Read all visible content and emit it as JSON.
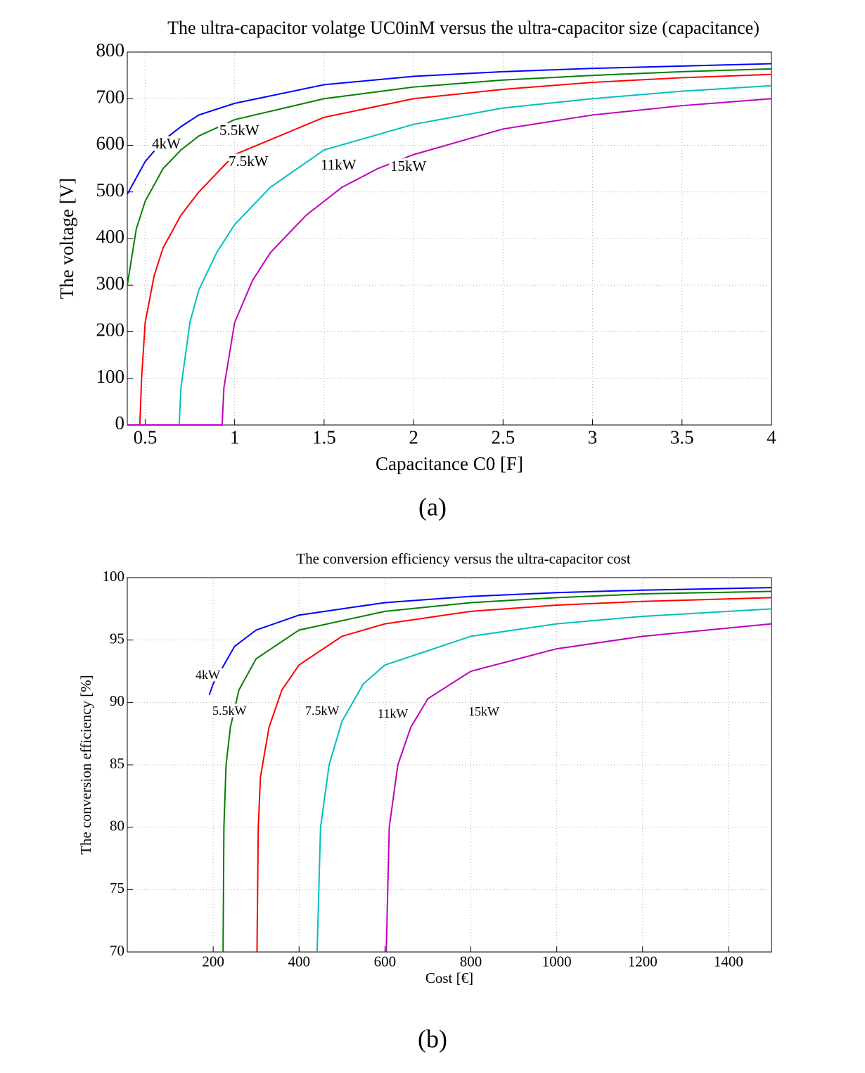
{
  "chart_data": [
    {
      "type": "line",
      "title": "The ultra-capacitor volatge UC0inM versus the ultra-capacitor size (capacitance)",
      "xlabel": "Capacitance C0 [F]",
      "ylabel": "The voltage [V]",
      "caption": "(a)",
      "xlim": [
        0.4,
        4
      ],
      "xticks": [
        0.5,
        1,
        1.5,
        2,
        2.5,
        3,
        3.5,
        4
      ],
      "ylim": [
        0,
        800
      ],
      "yticks": [
        0,
        100,
        200,
        300,
        400,
        500,
        600,
        700,
        800
      ],
      "grid": true,
      "series": [
        {
          "name": "4kW",
          "color": "#0000ff",
          "x": [
            0.4,
            0.5,
            0.6,
            0.7,
            0.8,
            1,
            1.5,
            2,
            2.5,
            3,
            3.5,
            4
          ],
          "values": [
            495,
            565,
            610,
            640,
            665,
            690,
            730,
            748,
            758,
            765,
            770,
            775
          ]
        },
        {
          "name": "5.5kW",
          "color": "#008000",
          "x": [
            0.4,
            0.45,
            0.5,
            0.6,
            0.7,
            0.8,
            1,
            1.5,
            2,
            2.5,
            3,
            3.5,
            4
          ],
          "values": [
            300,
            420,
            480,
            550,
            590,
            620,
            655,
            700,
            725,
            740,
            750,
            758,
            764
          ]
        },
        {
          "name": "7.5kW",
          "color": "#ff0000",
          "x": [
            0.4,
            0.47,
            0.48,
            0.5,
            0.55,
            0.6,
            0.7,
            0.8,
            0.9,
            1,
            1.5,
            2,
            2.5,
            3,
            3.5,
            4
          ],
          "values": [
            0,
            0,
            100,
            220,
            320,
            380,
            450,
            500,
            540,
            580,
            660,
            700,
            720,
            735,
            745,
            752
          ]
        },
        {
          "name": "11kW",
          "color": "#00bfbf",
          "x": [
            0.4,
            0.69,
            0.7,
            0.75,
            0.8,
            0.9,
            1,
            1.2,
            1.5,
            2,
            2.5,
            3,
            3.5,
            4
          ],
          "values": [
            0,
            0,
            80,
            220,
            290,
            370,
            430,
            510,
            590,
            645,
            680,
            700,
            716,
            728
          ]
        },
        {
          "name": "15kW",
          "color": "#bf00bf",
          "x": [
            0.4,
            0.93,
            0.94,
            1,
            1.1,
            1.2,
            1.4,
            1.6,
            1.8,
            2,
            2.5,
            3,
            3.5,
            4
          ],
          "values": [
            0,
            0,
            80,
            220,
            310,
            370,
            450,
            510,
            550,
            580,
            635,
            665,
            685,
            700
          ]
        }
      ]
    },
    {
      "type": "line",
      "title": "The conversion efficiency versus the ultra-capacitor cost",
      "xlabel": "Cost [€]",
      "ylabel": "The conversion efficiency [%]",
      "caption": "(b)",
      "xlim": [
        0,
        1500
      ],
      "xticks": [
        200,
        400,
        600,
        800,
        1000,
        1200,
        1400
      ],
      "ylim": [
        70,
        100
      ],
      "yticks": [
        70,
        75,
        80,
        85,
        90,
        95,
        100
      ],
      "grid": true,
      "series": [
        {
          "name": "4kW",
          "color": "#0000ff",
          "x": [
            191,
            200,
            250,
            300,
            400,
            600,
            800,
            1000,
            1200,
            1500
          ],
          "values": [
            90.6,
            91.5,
            94.5,
            95.8,
            97,
            98,
            98.5,
            98.8,
            99,
            99.2
          ]
        },
        {
          "name": "5.5kW",
          "color": "#008000",
          "x": [
            223,
            225,
            230,
            240,
            260,
            300,
            400,
            600,
            800,
            1000,
            1200,
            1500
          ],
          "values": [
            70,
            80,
            85,
            88,
            91,
            93.5,
            95.8,
            97.3,
            98,
            98.4,
            98.7,
            98.9
          ]
        },
        {
          "name": "7.5kW",
          "color": "#ff0000",
          "x": [
            302,
            305,
            310,
            330,
            360,
            400,
            500,
            600,
            800,
            1000,
            1200,
            1500
          ],
          "values": [
            70,
            80,
            84,
            88,
            91,
            93,
            95.3,
            96.3,
            97.3,
            97.8,
            98.1,
            98.4
          ]
        },
        {
          "name": "11kW",
          "color": "#00bfbf",
          "x": [
            442,
            450,
            470,
            500,
            550,
            600,
            800,
            1000,
            1200,
            1500
          ],
          "values": [
            70,
            80,
            85,
            88.5,
            91.5,
            93,
            95.3,
            96.3,
            96.9,
            97.5
          ]
        },
        {
          "name": "15kW",
          "color": "#bf00bf",
          "x": [
            603,
            610,
            630,
            660,
            700,
            800,
            1000,
            1200,
            1500
          ],
          "values": [
            70,
            80,
            85,
            88,
            90.3,
            92.5,
            94.3,
            95.3,
            96.3
          ]
        }
      ]
    }
  ]
}
